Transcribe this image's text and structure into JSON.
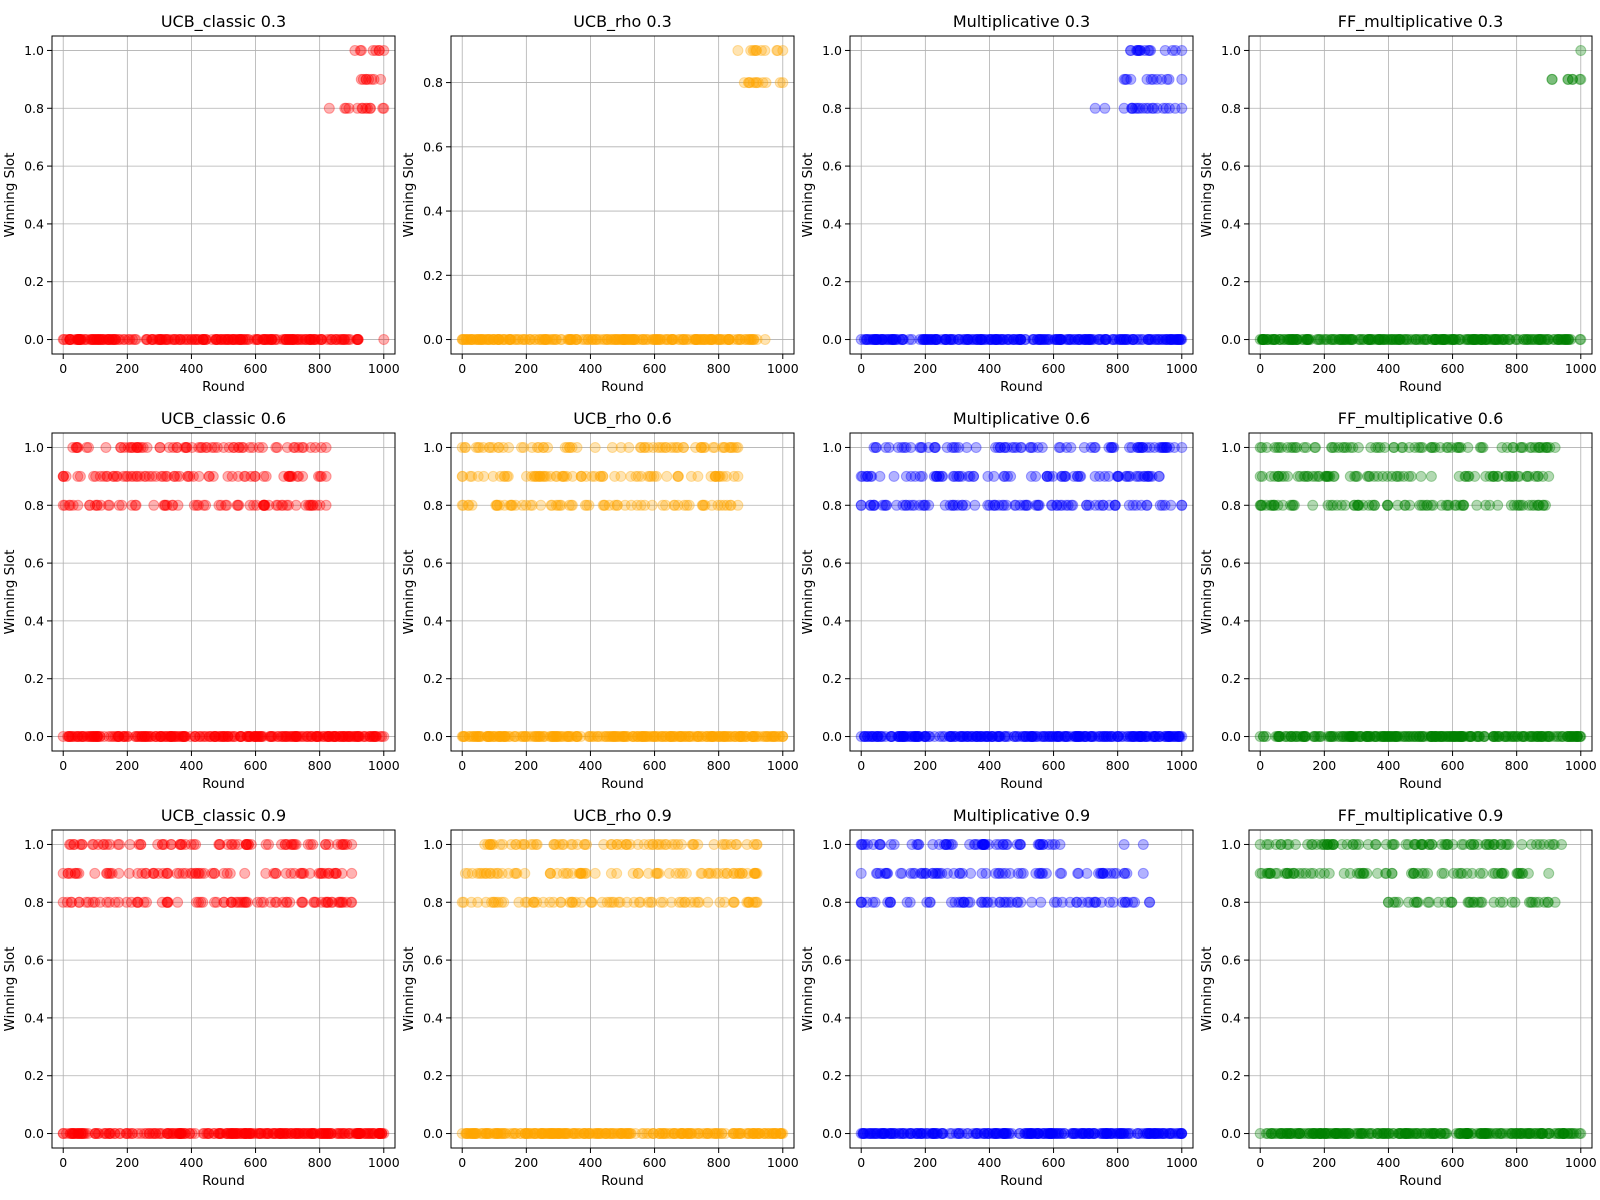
{
  "chart_data": [
    {
      "type": "scatter",
      "title": "UCB_classic 0.3",
      "xlabel": "Round",
      "ylabel": "Winning Slot",
      "color": "#ff0000",
      "xlim": [
        -35,
        1035
      ],
      "ylim": [
        -0.05,
        1.05
      ],
      "xticks": [
        0,
        200,
        400,
        600,
        800,
        1000
      ],
      "yticks": [
        0.0,
        0.2,
        0.4,
        0.6,
        0.8,
        1.0
      ],
      "ytick_labels": [
        "0.0",
        "0.2",
        "0.4",
        "0.6",
        "0.8",
        "1.0"
      ],
      "grid": true,
      "clusters": [
        {
          "y": 0.0,
          "x_range": [
            0,
            920
          ]
        },
        {
          "y": 0.8,
          "x_range": [
            830,
            1000
          ]
        },
        {
          "y": 0.9,
          "x_range": [
            930,
            990
          ]
        },
        {
          "y": 1.0,
          "x_range": [
            910,
            1000
          ]
        }
      ],
      "points": [
        {
          "x": 1000,
          "y": 0.0
        }
      ]
    },
    {
      "type": "scatter",
      "title": "UCB_rho 0.3",
      "xlabel": "Round",
      "ylabel": "Winning Slot",
      "color": "#ffa500",
      "xlim": [
        -35,
        1035
      ],
      "ylim": [
        -0.045,
        0.945
      ],
      "xticks": [
        0,
        200,
        400,
        600,
        800,
        1000
      ],
      "yticks": [
        0.0,
        0.2,
        0.4,
        0.6,
        0.8
      ],
      "ytick_labels": [
        "0.0",
        "0.2",
        "0.4",
        "0.6",
        "0.8"
      ],
      "grid": true,
      "clusters": [
        {
          "y": 0.0,
          "x_range": [
            0,
            920
          ]
        },
        {
          "y": 0.8,
          "x_range": [
            880,
            1000
          ]
        },
        {
          "y": 0.9,
          "x_range": [
            900,
            1000
          ]
        }
      ],
      "points": [
        {
          "x": 860,
          "y": 0.9
        },
        {
          "x": 945,
          "y": 0.0
        }
      ]
    },
    {
      "type": "scatter",
      "title": "Multiplicative 0.3",
      "xlabel": "Round",
      "ylabel": "Winning Slot",
      "color": "#0000ff",
      "xlim": [
        -35,
        1035
      ],
      "ylim": [
        -0.05,
        1.05
      ],
      "xticks": [
        0,
        200,
        400,
        600,
        800,
        1000
      ],
      "yticks": [
        0.0,
        0.2,
        0.4,
        0.6,
        0.8,
        1.0
      ],
      "ytick_labels": [
        "0.0",
        "0.2",
        "0.4",
        "0.6",
        "0.8",
        "1.0"
      ],
      "grid": true,
      "clusters": [
        {
          "y": 0.0,
          "x_range": [
            0,
            1000
          ]
        },
        {
          "y": 0.8,
          "x_range": [
            820,
            1000
          ]
        },
        {
          "y": 0.9,
          "x_range": [
            820,
            960
          ]
        },
        {
          "y": 1.0,
          "x_range": [
            840,
            1000
          ]
        }
      ],
      "points": [
        {
          "x": 730,
          "y": 0.8
        },
        {
          "x": 760,
          "y": 0.8
        },
        {
          "x": 1000,
          "y": 0.9
        }
      ]
    },
    {
      "type": "scatter",
      "title": "FF_multiplicative 0.3",
      "xlabel": "Round",
      "ylabel": "Winning Slot",
      "color": "#008000",
      "xlim": [
        -35,
        1035
      ],
      "ylim": [
        -0.05,
        1.05
      ],
      "xticks": [
        0,
        200,
        400,
        600,
        800,
        1000
      ],
      "yticks": [
        0.0,
        0.2,
        0.4,
        0.6,
        0.8,
        1.0
      ],
      "ytick_labels": [
        "0.0",
        "0.2",
        "0.4",
        "0.6",
        "0.8",
        "1.0"
      ],
      "grid": true,
      "clusters": [
        {
          "y": 0.0,
          "x_range": [
            0,
            1000
          ]
        },
        {
          "y": 0.9,
          "x_range": [
            910,
            1000
          ]
        }
      ],
      "points": [
        {
          "x": 1000,
          "y": 1.0
        }
      ]
    },
    {
      "type": "scatter",
      "title": "UCB_classic 0.6",
      "xlabel": "Round",
      "ylabel": "Winning Slot",
      "color": "#ff0000",
      "xlim": [
        -35,
        1035
      ],
      "ylim": [
        -0.05,
        1.05
      ],
      "xticks": [
        0,
        200,
        400,
        600,
        800,
        1000
      ],
      "yticks": [
        0.0,
        0.2,
        0.4,
        0.6,
        0.8,
        1.0
      ],
      "ytick_labels": [
        "0.0",
        "0.2",
        "0.4",
        "0.6",
        "0.8",
        "1.0"
      ],
      "grid": true,
      "clusters": [
        {
          "y": 0.0,
          "x_range": [
            0,
            1000
          ]
        },
        {
          "y": 0.8,
          "x_range": [
            0,
            820
          ]
        },
        {
          "y": 0.9,
          "x_range": [
            0,
            820
          ]
        },
        {
          "y": 1.0,
          "x_range": [
            30,
            820
          ]
        }
      ],
      "points": []
    },
    {
      "type": "scatter",
      "title": "UCB_rho 0.6",
      "xlabel": "Round",
      "ylabel": "Winning Slot",
      "color": "#ffa500",
      "xlim": [
        -35,
        1035
      ],
      "ylim": [
        -0.05,
        1.05
      ],
      "xticks": [
        0,
        200,
        400,
        600,
        800,
        1000
      ],
      "yticks": [
        0.0,
        0.2,
        0.4,
        0.6,
        0.8,
        1.0
      ],
      "ytick_labels": [
        "0.0",
        "0.2",
        "0.4",
        "0.6",
        "0.8",
        "1.0"
      ],
      "grid": true,
      "clusters": [
        {
          "y": 0.0,
          "x_range": [
            0,
            1000
          ]
        },
        {
          "y": 0.8,
          "x_range": [
            0,
            860
          ]
        },
        {
          "y": 0.9,
          "x_range": [
            0,
            860
          ]
        },
        {
          "y": 1.0,
          "x_range": [
            0,
            860
          ]
        }
      ],
      "points": []
    },
    {
      "type": "scatter",
      "title": "Multiplicative 0.6",
      "xlabel": "Round",
      "ylabel": "Winning Slot",
      "color": "#0000ff",
      "xlim": [
        -35,
        1035
      ],
      "ylim": [
        -0.05,
        1.05
      ],
      "xticks": [
        0,
        200,
        400,
        600,
        800,
        1000
      ],
      "yticks": [
        0.0,
        0.2,
        0.4,
        0.6,
        0.8,
        1.0
      ],
      "ytick_labels": [
        "0.0",
        "0.2",
        "0.4",
        "0.6",
        "0.8",
        "1.0"
      ],
      "grid": true,
      "clusters": [
        {
          "y": 0.0,
          "x_range": [
            0,
            1000
          ]
        },
        {
          "y": 0.8,
          "x_range": [
            0,
            1000
          ]
        },
        {
          "y": 0.9,
          "x_range": [
            0,
            930
          ]
        },
        {
          "y": 1.0,
          "x_range": [
            40,
            1000
          ]
        }
      ],
      "points": []
    },
    {
      "type": "scatter",
      "title": "FF_multiplicative 0.6",
      "xlabel": "Round",
      "ylabel": "Winning Slot",
      "color": "#008000",
      "xlim": [
        -35,
        1035
      ],
      "ylim": [
        -0.05,
        1.05
      ],
      "xticks": [
        0,
        200,
        400,
        600,
        800,
        1000
      ],
      "yticks": [
        0.0,
        0.2,
        0.4,
        0.6,
        0.8,
        1.0
      ],
      "ytick_labels": [
        "0.0",
        "0.2",
        "0.4",
        "0.6",
        "0.8",
        "1.0"
      ],
      "grid": true,
      "clusters": [
        {
          "y": 0.0,
          "x_range": [
            0,
            1000
          ]
        },
        {
          "y": 0.8,
          "x_range": [
            0,
            890
          ]
        },
        {
          "y": 0.9,
          "x_range": [
            0,
            900
          ]
        },
        {
          "y": 1.0,
          "x_range": [
            0,
            920
          ]
        }
      ],
      "points": []
    },
    {
      "type": "scatter",
      "title": "UCB_classic 0.9",
      "xlabel": "Round",
      "ylabel": "Winning Slot",
      "color": "#ff0000",
      "xlim": [
        -35,
        1035
      ],
      "ylim": [
        -0.05,
        1.05
      ],
      "xticks": [
        0,
        200,
        400,
        600,
        800,
        1000
      ],
      "yticks": [
        0.0,
        0.2,
        0.4,
        0.6,
        0.8,
        1.0
      ],
      "ytick_labels": [
        "0.0",
        "0.2",
        "0.4",
        "0.6",
        "0.8",
        "1.0"
      ],
      "grid": true,
      "clusters": [
        {
          "y": 0.0,
          "x_range": [
            0,
            1000
          ]
        },
        {
          "y": 0.8,
          "x_range": [
            0,
            900
          ]
        },
        {
          "y": 0.9,
          "x_range": [
            0,
            900
          ]
        },
        {
          "y": 1.0,
          "x_range": [
            20,
            900
          ]
        }
      ],
      "points": []
    },
    {
      "type": "scatter",
      "title": "UCB_rho 0.9",
      "xlabel": "Round",
      "ylabel": "Winning Slot",
      "color": "#ffa500",
      "xlim": [
        -35,
        1035
      ],
      "ylim": [
        -0.05,
        1.05
      ],
      "xticks": [
        0,
        200,
        400,
        600,
        800,
        1000
      ],
      "yticks": [
        0.0,
        0.2,
        0.4,
        0.6,
        0.8,
        1.0
      ],
      "ytick_labels": [
        "0.0",
        "0.2",
        "0.4",
        "0.6",
        "0.8",
        "1.0"
      ],
      "grid": true,
      "clusters": [
        {
          "y": 0.0,
          "x_range": [
            0,
            1000
          ]
        },
        {
          "y": 0.8,
          "x_range": [
            0,
            920
          ]
        },
        {
          "y": 0.9,
          "x_range": [
            10,
            920
          ]
        },
        {
          "y": 1.0,
          "x_range": [
            70,
            920
          ]
        }
      ],
      "points": []
    },
    {
      "type": "scatter",
      "title": "Multiplicative 0.9",
      "xlabel": "Round",
      "ylabel": "Winning Slot",
      "color": "#0000ff",
      "xlim": [
        -35,
        1035
      ],
      "ylim": [
        -0.05,
        1.05
      ],
      "xticks": [
        0,
        200,
        400,
        600,
        800,
        1000
      ],
      "yticks": [
        0.0,
        0.2,
        0.4,
        0.6,
        0.8,
        1.0
      ],
      "ytick_labels": [
        "0.0",
        "0.2",
        "0.4",
        "0.6",
        "0.8",
        "1.0"
      ],
      "grid": true,
      "clusters": [
        {
          "y": 0.0,
          "x_range": [
            0,
            1000
          ]
        },
        {
          "y": 0.8,
          "x_range": [
            0,
            900
          ]
        },
        {
          "y": 0.9,
          "x_range": [
            0,
            880
          ]
        },
        {
          "y": 1.0,
          "x_range": [
            0,
            620
          ]
        }
      ],
      "points": [
        {
          "x": 820,
          "y": 1.0
        },
        {
          "x": 880,
          "y": 1.0
        }
      ]
    },
    {
      "type": "scatter",
      "title": "FF_multiplicative 0.9",
      "xlabel": "Round",
      "ylabel": "Winning Slot",
      "color": "#008000",
      "xlim": [
        -35,
        1035
      ],
      "ylim": [
        -0.05,
        1.05
      ],
      "xticks": [
        0,
        200,
        400,
        600,
        800,
        1000
      ],
      "yticks": [
        0.0,
        0.2,
        0.4,
        0.6,
        0.8,
        1.0
      ],
      "ytick_labels": [
        "0.0",
        "0.2",
        "0.4",
        "0.6",
        "0.8",
        "1.0"
      ],
      "grid": true,
      "clusters": [
        {
          "y": 0.0,
          "x_range": [
            0,
            1000
          ]
        },
        {
          "y": 0.8,
          "x_range": [
            400,
            920
          ]
        },
        {
          "y": 0.9,
          "x_range": [
            0,
            900
          ]
        },
        {
          "y": 1.0,
          "x_range": [
            0,
            940
          ]
        }
      ],
      "points": []
    }
  ]
}
